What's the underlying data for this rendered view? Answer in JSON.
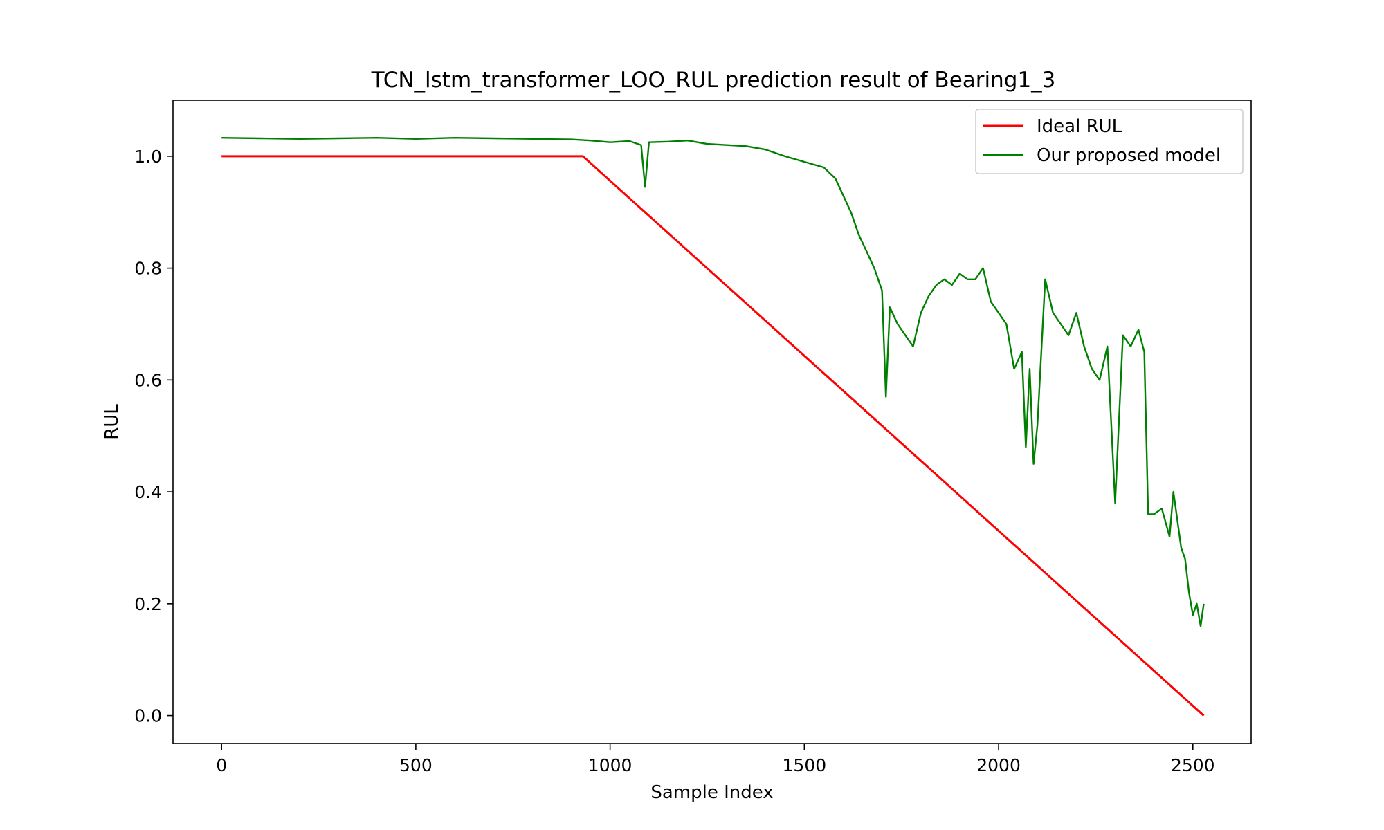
{
  "chart_data": {
    "type": "line",
    "title": "TCN_lstm_transformer_LOO_RUL prediction result of Bearing1_3",
    "xlabel": "Sample Index",
    "ylabel": "RUL",
    "xlim": [
      -125,
      2650
    ],
    "ylim": [
      -0.05,
      1.1
    ],
    "xticks": [
      0,
      500,
      1000,
      1500,
      2000,
      2500
    ],
    "yticks": [
      0.0,
      0.2,
      0.4,
      0.6,
      0.8,
      1.0
    ],
    "xtick_labels": [
      "0",
      "500",
      "1000",
      "1500",
      "2000",
      "2500"
    ],
    "ytick_labels": [
      "0.0",
      "0.2",
      "0.4",
      "0.6",
      "0.8",
      "1.0"
    ],
    "grid": false,
    "legend_position": "top-right",
    "series": [
      {
        "name": "Ideal RUL",
        "color": "#ff0000",
        "x": [
          0,
          930,
          2528
        ],
        "y": [
          1.0,
          1.0,
          0.0
        ]
      },
      {
        "name": "Our proposed model",
        "color": "#008000",
        "x": [
          0,
          100,
          200,
          300,
          400,
          500,
          600,
          700,
          800,
          900,
          950,
          1000,
          1050,
          1080,
          1090,
          1100,
          1150,
          1200,
          1250,
          1300,
          1350,
          1400,
          1450,
          1500,
          1550,
          1580,
          1600,
          1620,
          1640,
          1660,
          1680,
          1700,
          1710,
          1720,
          1740,
          1760,
          1780,
          1800,
          1820,
          1840,
          1860,
          1880,
          1900,
          1920,
          1940,
          1960,
          1980,
          2000,
          2020,
          2040,
          2060,
          2070,
          2080,
          2090,
          2100,
          2120,
          2140,
          2160,
          2180,
          2200,
          2220,
          2240,
          2260,
          2280,
          2300,
          2320,
          2340,
          2360,
          2375,
          2385,
          2400,
          2420,
          2440,
          2450,
          2460,
          2470,
          2480,
          2490,
          2500,
          2510,
          2520,
          2528
        ],
        "y": [
          1.033,
          1.032,
          1.031,
          1.032,
          1.033,
          1.031,
          1.033,
          1.032,
          1.031,
          1.03,
          1.028,
          1.025,
          1.027,
          1.02,
          0.945,
          1.025,
          1.026,
          1.028,
          1.022,
          1.02,
          1.018,
          1.012,
          1.0,
          0.99,
          0.98,
          0.96,
          0.93,
          0.9,
          0.86,
          0.83,
          0.8,
          0.76,
          0.57,
          0.73,
          0.7,
          0.68,
          0.66,
          0.72,
          0.75,
          0.77,
          0.78,
          0.77,
          0.79,
          0.78,
          0.78,
          0.8,
          0.74,
          0.72,
          0.7,
          0.62,
          0.65,
          0.48,
          0.62,
          0.45,
          0.52,
          0.78,
          0.72,
          0.7,
          0.68,
          0.72,
          0.66,
          0.62,
          0.6,
          0.66,
          0.38,
          0.68,
          0.66,
          0.69,
          0.65,
          0.36,
          0.36,
          0.37,
          0.32,
          0.4,
          0.35,
          0.3,
          0.28,
          0.22,
          0.18,
          0.2,
          0.16,
          0.2
        ]
      }
    ]
  }
}
